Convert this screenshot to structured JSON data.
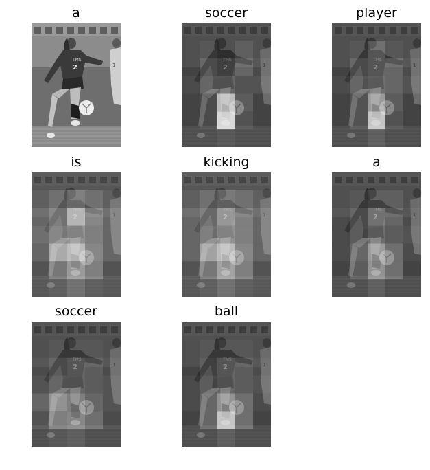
{
  "figure": {
    "caption_words": [
      "a",
      "soccer",
      "player",
      "is",
      "kicking",
      "a",
      "soccer",
      "ball"
    ],
    "image_description_icon": "grayscale-photo-of-soccer-player-kicking-ball",
    "attention_colors": {
      "low": "#2a2a2a",
      "high": "#f2f2f2"
    }
  },
  "panels": [
    {
      "word": "a",
      "overlay": false
    },
    {
      "word": "soccer",
      "overlay": true
    },
    {
      "word": "player",
      "overlay": true
    },
    {
      "word": "is",
      "overlay": true
    },
    {
      "word": "kicking",
      "overlay": true
    },
    {
      "word": "a",
      "overlay": true
    },
    {
      "word": "soccer",
      "overlay": true
    },
    {
      "word": "ball",
      "overlay": true
    }
  ]
}
